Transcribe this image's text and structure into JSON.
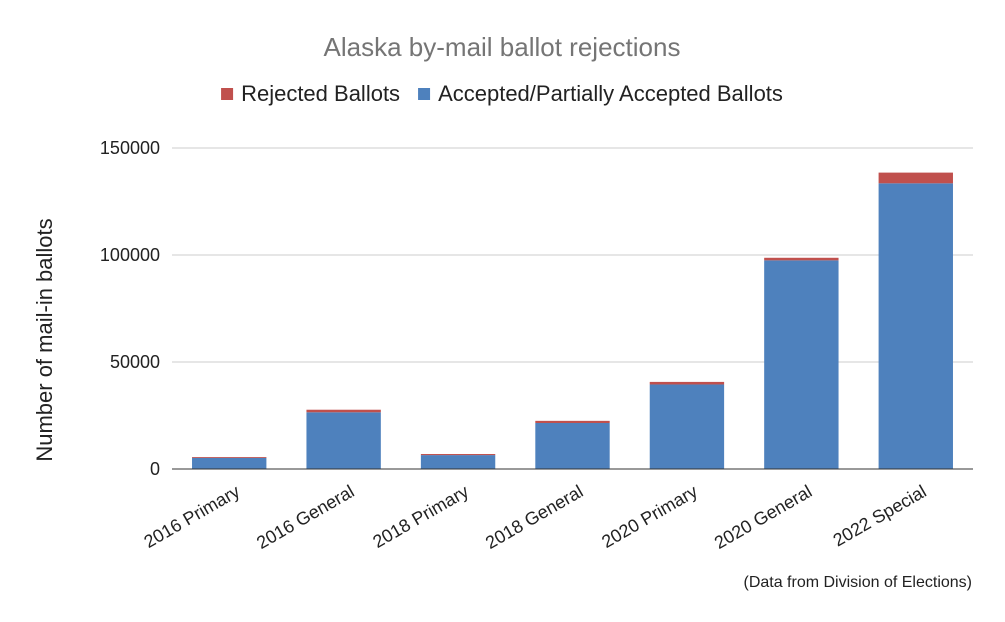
{
  "chart_data": {
    "type": "bar",
    "stacked": true,
    "title": "Alaska by-mail ballot rejections",
    "ylabel": "Number of mail-in ballots",
    "xlabel": "",
    "note": "(Data from Division of Elections)",
    "categories": [
      "2016 Primary",
      "2016 General",
      "2018 Primary",
      "2018 General",
      "2020 Primary",
      "2020 General",
      "2022 Special"
    ],
    "ylim": [
      0,
      150000
    ],
    "yticks": [
      0,
      50000,
      100000,
      150000
    ],
    "ytick_labels": [
      "0",
      "50000",
      "100000",
      "150000"
    ],
    "grid": true,
    "legend_position": "top",
    "series": [
      {
        "name": "Accepted/Partially Accepted Ballots",
        "color": "#4e81bd",
        "values": [
          5200,
          26500,
          6500,
          21500,
          39500,
          97500,
          133500
        ]
      },
      {
        "name": "Rejected Ballots",
        "color": "#c0504d",
        "values": [
          400,
          1200,
          500,
          1000,
          1200,
          1200,
          5000
        ]
      }
    ],
    "legend_order": [
      1,
      0
    ]
  }
}
